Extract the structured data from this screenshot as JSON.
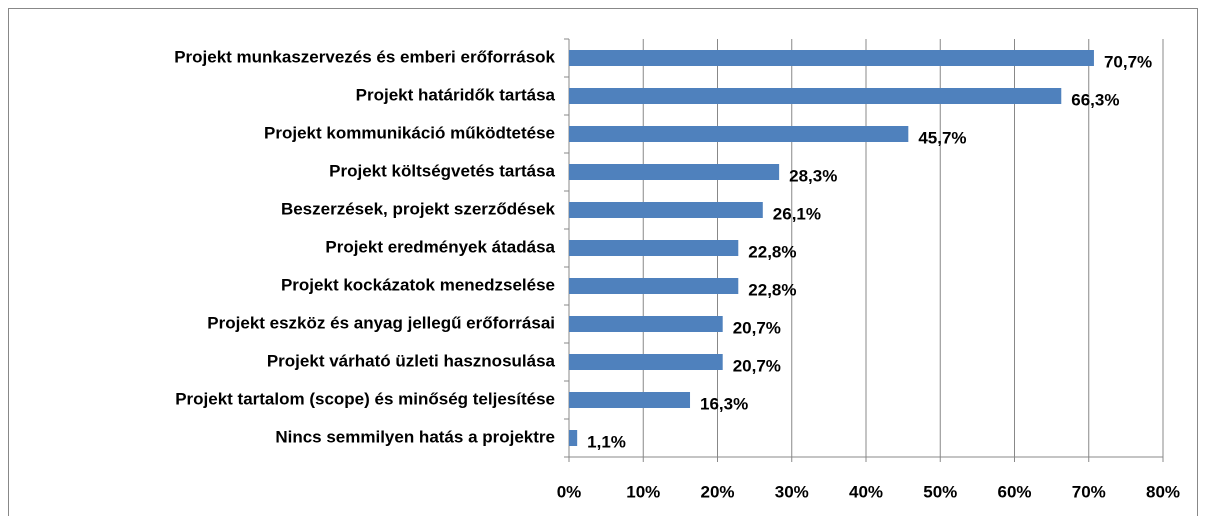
{
  "chart_data": {
    "type": "bar",
    "orientation": "horizontal",
    "categories": [
      "Projekt munkaszervezés és emberi erőforrások",
      "Projekt határidők tartása",
      "Projekt kommunikáció működtetése",
      "Projekt költségvetés tartása",
      "Beszerzések, projekt szerződések",
      "Projekt eredmények átadása",
      "Projekt kockázatok menedzselése",
      "Projekt eszköz és anyag jellegű erőforrásai",
      "Projekt várható üzleti hasznosulása",
      "Projekt tartalom (scope) és minőség teljesítése",
      "Nincs semmilyen hatás a projektre"
    ],
    "values": [
      70.7,
      66.3,
      45.7,
      28.3,
      26.1,
      22.8,
      22.8,
      20.7,
      20.7,
      16.3,
      1.1
    ],
    "value_labels": [
      "70,7%",
      "66,3%",
      "45,7%",
      "28,3%",
      "26,1%",
      "22,8%",
      "22,8%",
      "20,7%",
      "20,7%",
      "16,3%",
      "1,1%"
    ],
    "color": "#4f81bd",
    "xlim": [
      0,
      80
    ],
    "xticks": [
      {
        "value": 0,
        "label": "0%"
      },
      {
        "value": 10,
        "label": "10%"
      },
      {
        "value": 20,
        "label": "20%"
      },
      {
        "value": 30,
        "label": "30%"
      },
      {
        "value": 40,
        "label": "40%"
      },
      {
        "value": 50,
        "label": "50%"
      },
      {
        "value": 60,
        "label": "60%"
      },
      {
        "value": 70,
        "label": "70%"
      },
      {
        "value": 80,
        "label": "80%"
      }
    ],
    "grid": true
  }
}
